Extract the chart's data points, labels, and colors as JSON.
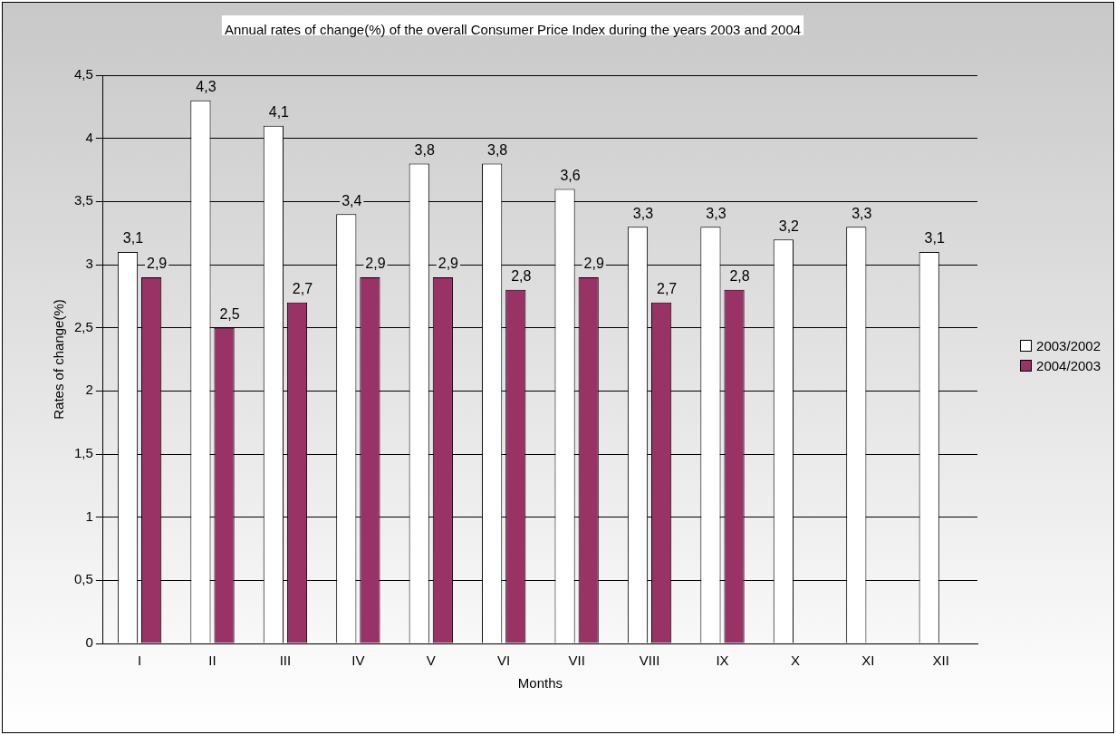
{
  "chart_data": {
    "type": "bar",
    "title": "Annual rates of change(%) of the overall Consumer Price Index during the years 2003 and 2004",
    "xlabel": "Months",
    "ylabel": "Rates of change(%)",
    "categories": [
      "I",
      "II",
      "III",
      "IV",
      "V",
      "VI",
      "VII",
      "VIII",
      "IX",
      "X",
      "XI",
      "XII"
    ],
    "series": [
      {
        "name": "2003/2002",
        "color": "#ffffff",
        "values": [
          3.1,
          4.3,
          4.1,
          3.4,
          3.8,
          3.8,
          3.6,
          3.3,
          3.3,
          3.2,
          3.3,
          3.1
        ],
        "value_labels": [
          "3,1",
          "4,3",
          "4,1",
          "3,4",
          "3,8",
          "3,8",
          "3,6",
          "3,3",
          "3,3",
          "3,2",
          "3,3",
          "3,1"
        ]
      },
      {
        "name": "2004/2003",
        "color": "#993366",
        "values": [
          2.9,
          2.5,
          2.7,
          2.9,
          2.9,
          2.8,
          2.9,
          2.7,
          2.8,
          null,
          null,
          null
        ],
        "value_labels": [
          "2,9",
          "2,5",
          "2,7",
          "2,9",
          "2,9",
          "2,8",
          "2,9",
          "2,7",
          "2,8",
          null,
          null,
          null
        ]
      }
    ],
    "ylim": [
      0,
      4.5
    ],
    "yticks": [
      0,
      {
        "value": 0.5,
        "label": "0,5"
      },
      1,
      {
        "value": 1.5,
        "label": "1,5"
      },
      2,
      {
        "value": 2.5,
        "label": "2,5"
      },
      3,
      {
        "value": 3.5,
        "label": "3,5"
      },
      4,
      {
        "value": 4.5,
        "label": "4,5"
      }
    ],
    "grid": "y",
    "legend": "right"
  }
}
